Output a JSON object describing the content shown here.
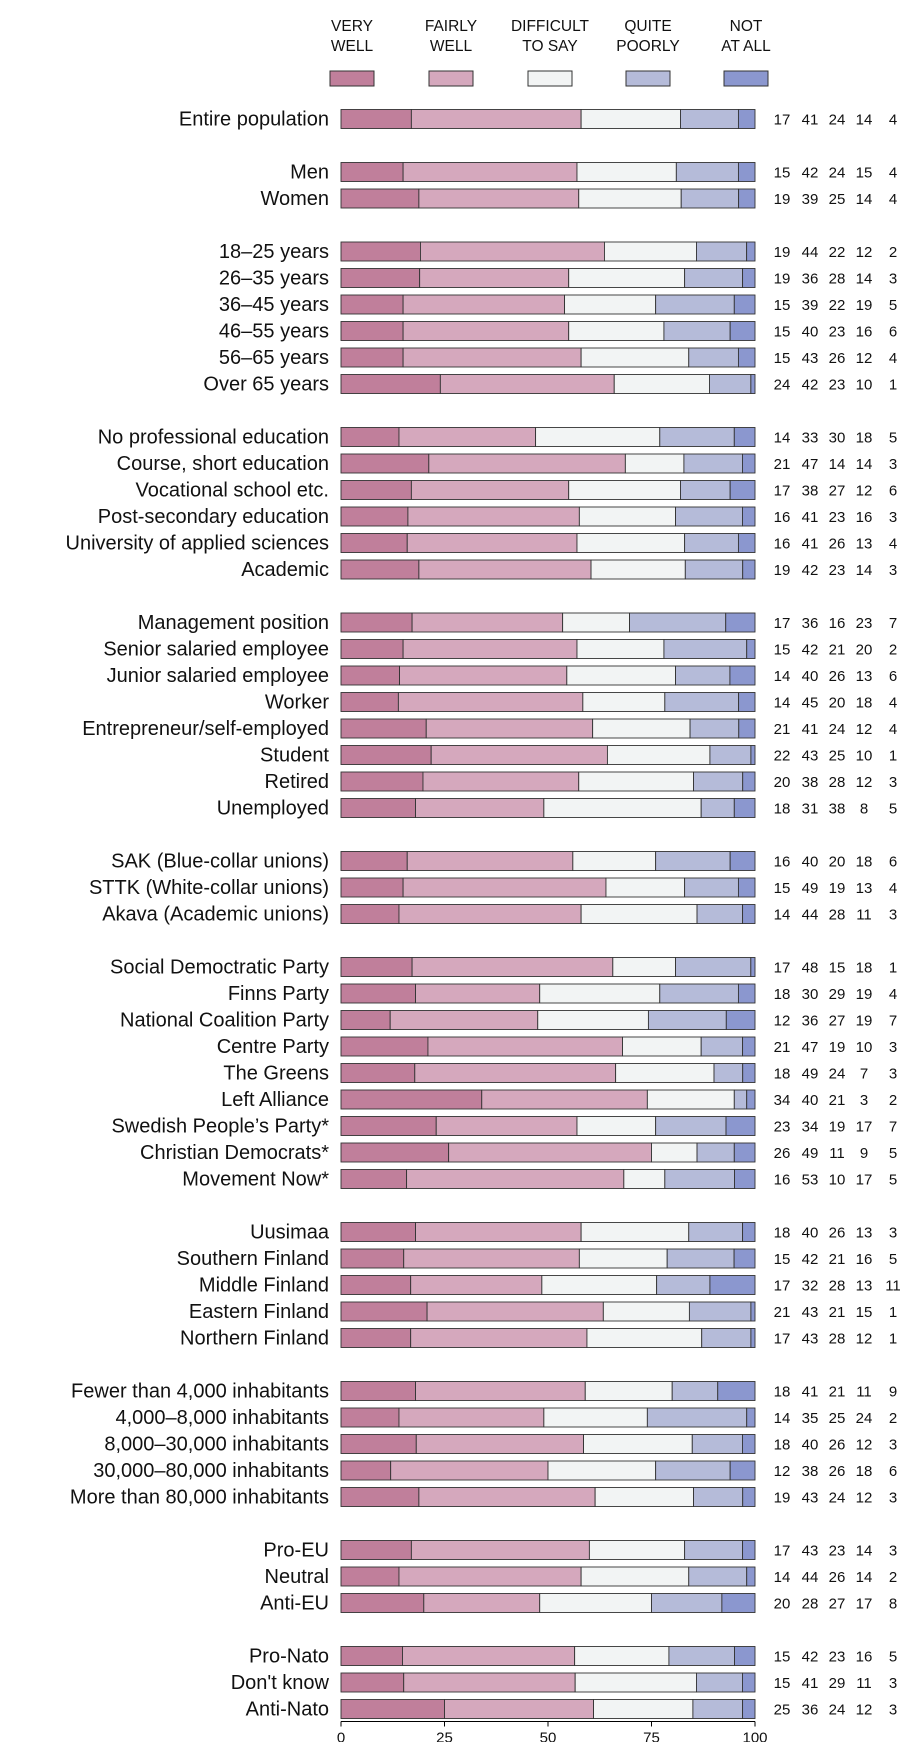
{
  "chart_data": {
    "type": "bar",
    "stacked": "horizontal-100%",
    "legend_position": "top",
    "series": [
      {
        "name": "VERY WELL",
        "color": "#c07f9b"
      },
      {
        "name": "FAIRLY WELL",
        "color": "#d5a8bd"
      },
      {
        "name": "DIFFICULT TO SAY",
        "color": "#f2f4f4"
      },
      {
        "name": "QUITE POORLY",
        "color": "#b5bbd9"
      },
      {
        "name": "NOT AT ALL",
        "color": "#8b97cf"
      }
    ],
    "legend_lines": [
      [
        "VERY",
        "WELL"
      ],
      [
        "FAIRLY",
        "WELL"
      ],
      [
        "DIFFICULT",
        "TO SAY"
      ],
      [
        "QUITE",
        "POORLY"
      ],
      [
        "NOT",
        "AT ALL"
      ]
    ],
    "xlim": [
      0,
      100
    ],
    "xticks": [
      "0",
      "25",
      "50",
      "75",
      "100"
    ],
    "groups": [
      [
        {
          "label": "Entire population",
          "values": [
            17,
            41,
            24,
            14,
            4
          ]
        }
      ],
      [
        {
          "label": "Men",
          "values": [
            15,
            42,
            24,
            15,
            4
          ]
        },
        {
          "label": "Women",
          "values": [
            19,
            39,
            25,
            14,
            4
          ]
        }
      ],
      [
        {
          "label": "18–25 years",
          "values": [
            19,
            44,
            22,
            12,
            2
          ]
        },
        {
          "label": "26–35 years",
          "values": [
            19,
            36,
            28,
            14,
            3
          ]
        },
        {
          "label": "36–45 years",
          "values": [
            15,
            39,
            22,
            19,
            5
          ]
        },
        {
          "label": "46–55 years",
          "values": [
            15,
            40,
            23,
            16,
            6
          ]
        },
        {
          "label": "56–65 years",
          "values": [
            15,
            43,
            26,
            12,
            4
          ]
        },
        {
          "label": "Over 65 years",
          "values": [
            24,
            42,
            23,
            10,
            1
          ]
        }
      ],
      [
        {
          "label": "No professional education",
          "values": [
            14,
            33,
            30,
            18,
            5
          ]
        },
        {
          "label": "Course, short education",
          "values": [
            21,
            47,
            14,
            14,
            3
          ]
        },
        {
          "label": "Vocational school etc.",
          "values": [
            17,
            38,
            27,
            12,
            6
          ]
        },
        {
          "label": "Post-secondary education",
          "values": [
            16,
            41,
            23,
            16,
            3
          ]
        },
        {
          "label": "University of applied sciences",
          "values": [
            16,
            41,
            26,
            13,
            4
          ]
        },
        {
          "label": "Academic",
          "values": [
            19,
            42,
            23,
            14,
            3
          ]
        }
      ],
      [
        {
          "label": "Management position",
          "values": [
            17,
            36,
            16,
            23,
            7
          ]
        },
        {
          "label": "Senior salaried employee",
          "values": [
            15,
            42,
            21,
            20,
            2
          ]
        },
        {
          "label": "Junior salaried employee",
          "values": [
            14,
            40,
            26,
            13,
            6
          ]
        },
        {
          "label": "Worker",
          "values": [
            14,
            45,
            20,
            18,
            4
          ]
        },
        {
          "label": "Entrepreneur/self-employed",
          "values": [
            21,
            41,
            24,
            12,
            4
          ]
        },
        {
          "label": "Student",
          "values": [
            22,
            43,
            25,
            10,
            1
          ]
        },
        {
          "label": "Retired",
          "values": [
            20,
            38,
            28,
            12,
            3
          ]
        },
        {
          "label": "Unemployed",
          "values": [
            18,
            31,
            38,
            8,
            5
          ]
        }
      ],
      [
        {
          "label": "SAK (Blue-collar unions)",
          "values": [
            16,
            40,
            20,
            18,
            6
          ]
        },
        {
          "label": "STTK (White-collar unions)",
          "values": [
            15,
            49,
            19,
            13,
            4
          ]
        },
        {
          "label": "Akava (Academic unions)",
          "values": [
            14,
            44,
            28,
            11,
            3
          ]
        }
      ],
      [
        {
          "label": "Social Democtratic Party",
          "values": [
            17,
            48,
            15,
            18,
            1
          ]
        },
        {
          "label": "Finns Party",
          "values": [
            18,
            30,
            29,
            19,
            4
          ]
        },
        {
          "label": "National Coalition Party",
          "values": [
            12,
            36,
            27,
            19,
            7
          ]
        },
        {
          "label": "Centre Party",
          "values": [
            21,
            47,
            19,
            10,
            3
          ]
        },
        {
          "label": "The Greens",
          "values": [
            18,
            49,
            24,
            7,
            3
          ]
        },
        {
          "label": "Left Alliance",
          "values": [
            34,
            40,
            21,
            3,
            2
          ]
        },
        {
          "label": "Swedish People’s Party*",
          "values": [
            23,
            34,
            19,
            17,
            7
          ]
        },
        {
          "label": "Christian Democrats*",
          "values": [
            26,
            49,
            11,
            9,
            5
          ]
        },
        {
          "label": "Movement Now*",
          "values": [
            16,
            53,
            10,
            17,
            5
          ]
        }
      ],
      [
        {
          "label": "Uusimaa",
          "values": [
            18,
            40,
            26,
            13,
            3
          ]
        },
        {
          "label": "Southern Finland",
          "values": [
            15,
            42,
            21,
            16,
            5
          ]
        },
        {
          "label": "Middle Finland",
          "values": [
            17,
            32,
            28,
            13,
            11
          ]
        },
        {
          "label": "Eastern Finland",
          "values": [
            21,
            43,
            21,
            15,
            1
          ]
        },
        {
          "label": "Northern Finland",
          "values": [
            17,
            43,
            28,
            12,
            1
          ]
        }
      ],
      [
        {
          "label": "Fewer than 4,000 inhabitants",
          "values": [
            18,
            41,
            21,
            11,
            9
          ]
        },
        {
          "label": "4,000–8,000 inhabitants",
          "values": [
            14,
            35,
            25,
            24,
            2
          ]
        },
        {
          "label": "8,000–30,000 inhabitants",
          "values": [
            18,
            40,
            26,
            12,
            3
          ]
        },
        {
          "label": "30,000–80,000 inhabitants",
          "values": [
            12,
            38,
            26,
            18,
            6
          ]
        },
        {
          "label": "More than 80,000 inhabitants",
          "values": [
            19,
            43,
            24,
            12,
            3
          ]
        }
      ],
      [
        {
          "label": "Pro-EU",
          "values": [
            17,
            43,
            23,
            14,
            3
          ]
        },
        {
          "label": "Neutral",
          "values": [
            14,
            44,
            26,
            14,
            2
          ]
        },
        {
          "label": "Anti-EU",
          "values": [
            20,
            28,
            27,
            17,
            8
          ]
        }
      ],
      [
        {
          "label": "Pro-Nato",
          "values": [
            15,
            42,
            23,
            16,
            5
          ]
        },
        {
          "label": "Don't know",
          "values": [
            15,
            41,
            29,
            11,
            3
          ]
        },
        {
          "label": "Anti-Nato",
          "values": [
            25,
            36,
            24,
            12,
            3
          ]
        }
      ]
    ]
  }
}
